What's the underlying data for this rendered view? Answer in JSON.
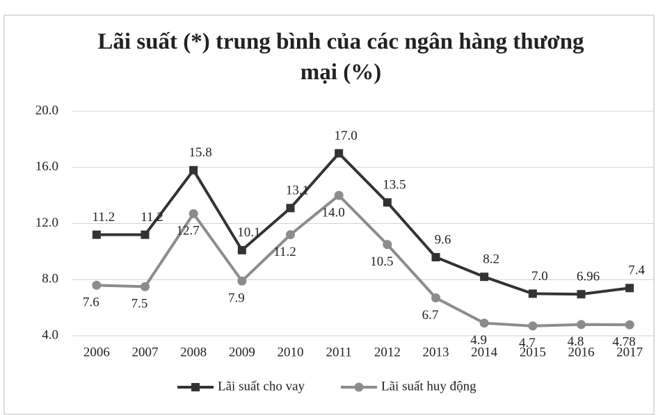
{
  "chart_data": {
    "type": "line",
    "title": "Lãi suất (*) trung bình của các ngân hàng thương mại (%)",
    "categories": [
      "2006",
      "2007",
      "2008",
      "2009",
      "2010",
      "2011",
      "2012",
      "2013",
      "2014",
      "2015",
      "2016",
      "2017"
    ],
    "series": [
      {
        "name": "Lãi suất cho vay",
        "color": "#333333",
        "marker": "square",
        "values": [
          11.2,
          11.2,
          15.8,
          10.1,
          13.1,
          17.0,
          13.5,
          9.6,
          8.2,
          7.0,
          6.96,
          7.4
        ],
        "value_labels": [
          "11.2",
          "11.2",
          "15.8",
          "10.1",
          "13.1",
          "17.0",
          "13.5",
          "9.6",
          "8.2",
          "7.0",
          "6.96",
          "7.4"
        ]
      },
      {
        "name": "Lãi suất huy động",
        "color": "#8c8c8c",
        "marker": "circle",
        "values": [
          7.6,
          7.5,
          12.7,
          7.9,
          11.2,
          14.0,
          10.5,
          6.7,
          4.9,
          4.7,
          4.8,
          4.78
        ],
        "value_labels": [
          "7.6",
          "7.5",
          "12.7",
          "7.9",
          "11.2",
          "14.0",
          "10.5",
          "6.7",
          "4.9",
          "4.7",
          "4.8",
          "4.78"
        ]
      }
    ],
    "ylim": [
      4,
      20
    ],
    "yticks": [
      {
        "value": 4,
        "label": "4.0"
      },
      {
        "value": 8,
        "label": "8.0"
      },
      {
        "value": 12,
        "label": "12.0"
      },
      {
        "value": 16,
        "label": "16.0"
      },
      {
        "value": 20,
        "label": "20.0"
      }
    ],
    "grid": true,
    "legend": "bottom"
  }
}
